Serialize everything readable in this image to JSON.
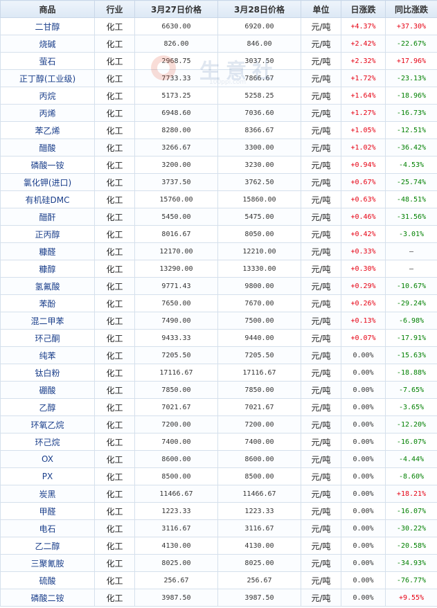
{
  "headers": [
    "商品",
    "行业",
    "3月27日价格",
    "3月28日价格",
    "单位",
    "日涨跌",
    "同比涨跌"
  ],
  "watermark": {
    "text": "生意社",
    "url": "100ppi.com"
  },
  "colors": {
    "up": "#e60012",
    "down": "#008000",
    "name": "#1a3e8a"
  },
  "rows": [
    {
      "name": "二甘醇",
      "industry": "化工",
      "p1": "6630.00",
      "p2": "6920.00",
      "unit": "元/吨",
      "day": "+4.37%",
      "yoy": "+37.30%"
    },
    {
      "name": "烧碱",
      "industry": "化工",
      "p1": "826.00",
      "p2": "846.00",
      "unit": "元/吨",
      "day": "+2.42%",
      "yoy": "-22.67%"
    },
    {
      "name": "萤石",
      "industry": "化工",
      "p1": "2968.75",
      "p2": "3037.50",
      "unit": "元/吨",
      "day": "+2.32%",
      "yoy": "+17.96%"
    },
    {
      "name": "正丁醇(工业级)",
      "industry": "化工",
      "p1": "7733.33",
      "p2": "7866.67",
      "unit": "元/吨",
      "day": "+1.72%",
      "yoy": "-23.13%"
    },
    {
      "name": "丙烷",
      "industry": "化工",
      "p1": "5173.25",
      "p2": "5258.25",
      "unit": "元/吨",
      "day": "+1.64%",
      "yoy": "-18.96%"
    },
    {
      "name": "丙烯",
      "industry": "化工",
      "p1": "6948.60",
      "p2": "7036.60",
      "unit": "元/吨",
      "day": "+1.27%",
      "yoy": "-16.73%"
    },
    {
      "name": "苯乙烯",
      "industry": "化工",
      "p1": "8280.00",
      "p2": "8366.67",
      "unit": "元/吨",
      "day": "+1.05%",
      "yoy": "-12.51%"
    },
    {
      "name": "醋酸",
      "industry": "化工",
      "p1": "3266.67",
      "p2": "3300.00",
      "unit": "元/吨",
      "day": "+1.02%",
      "yoy": "-36.42%"
    },
    {
      "name": "磷酸一铵",
      "industry": "化工",
      "p1": "3200.00",
      "p2": "3230.00",
      "unit": "元/吨",
      "day": "+0.94%",
      "yoy": "-4.53%"
    },
    {
      "name": "氯化钾(进口)",
      "industry": "化工",
      "p1": "3737.50",
      "p2": "3762.50",
      "unit": "元/吨",
      "day": "+0.67%",
      "yoy": "-25.74%"
    },
    {
      "name": "有机硅DMC",
      "industry": "化工",
      "p1": "15760.00",
      "p2": "15860.00",
      "unit": "元/吨",
      "day": "+0.63%",
      "yoy": "-48.51%"
    },
    {
      "name": "醋酐",
      "industry": "化工",
      "p1": "5450.00",
      "p2": "5475.00",
      "unit": "元/吨",
      "day": "+0.46%",
      "yoy": "-31.56%"
    },
    {
      "name": "正丙醇",
      "industry": "化工",
      "p1": "8016.67",
      "p2": "8050.00",
      "unit": "元/吨",
      "day": "+0.42%",
      "yoy": "-3.01%"
    },
    {
      "name": "糠醛",
      "industry": "化工",
      "p1": "12170.00",
      "p2": "12210.00",
      "unit": "元/吨",
      "day": "+0.33%",
      "yoy": "—"
    },
    {
      "name": "糠醇",
      "industry": "化工",
      "p1": "13290.00",
      "p2": "13330.00",
      "unit": "元/吨",
      "day": "+0.30%",
      "yoy": "—"
    },
    {
      "name": "氢氟酸",
      "industry": "化工",
      "p1": "9771.43",
      "p2": "9800.00",
      "unit": "元/吨",
      "day": "+0.29%",
      "yoy": "-10.67%"
    },
    {
      "name": "苯酚",
      "industry": "化工",
      "p1": "7650.00",
      "p2": "7670.00",
      "unit": "元/吨",
      "day": "+0.26%",
      "yoy": "-29.24%"
    },
    {
      "name": "混二甲苯",
      "industry": "化工",
      "p1": "7490.00",
      "p2": "7500.00",
      "unit": "元/吨",
      "day": "+0.13%",
      "yoy": "-6.98%"
    },
    {
      "name": "环己酮",
      "industry": "化工",
      "p1": "9433.33",
      "p2": "9440.00",
      "unit": "元/吨",
      "day": "+0.07%",
      "yoy": "-17.91%"
    },
    {
      "name": "纯苯",
      "industry": "化工",
      "p1": "7205.50",
      "p2": "7205.50",
      "unit": "元/吨",
      "day": "0.00%",
      "yoy": "-15.63%"
    },
    {
      "name": "钛白粉",
      "industry": "化工",
      "p1": "17116.67",
      "p2": "17116.67",
      "unit": "元/吨",
      "day": "0.00%",
      "yoy": "-18.88%"
    },
    {
      "name": "硼酸",
      "industry": "化工",
      "p1": "7850.00",
      "p2": "7850.00",
      "unit": "元/吨",
      "day": "0.00%",
      "yoy": "-7.65%"
    },
    {
      "name": "乙醇",
      "industry": "化工",
      "p1": "7021.67",
      "p2": "7021.67",
      "unit": "元/吨",
      "day": "0.00%",
      "yoy": "-3.65%"
    },
    {
      "name": "环氧乙烷",
      "industry": "化工",
      "p1": "7200.00",
      "p2": "7200.00",
      "unit": "元/吨",
      "day": "0.00%",
      "yoy": "-12.20%"
    },
    {
      "name": "环己烷",
      "industry": "化工",
      "p1": "7400.00",
      "p2": "7400.00",
      "unit": "元/吨",
      "day": "0.00%",
      "yoy": "-16.07%"
    },
    {
      "name": "OX",
      "industry": "化工",
      "p1": "8600.00",
      "p2": "8600.00",
      "unit": "元/吨",
      "day": "0.00%",
      "yoy": "-4.44%"
    },
    {
      "name": "PX",
      "industry": "化工",
      "p1": "8500.00",
      "p2": "8500.00",
      "unit": "元/吨",
      "day": "0.00%",
      "yoy": "-8.60%"
    },
    {
      "name": "炭黑",
      "industry": "化工",
      "p1": "11466.67",
      "p2": "11466.67",
      "unit": "元/吨",
      "day": "0.00%",
      "yoy": "+18.21%"
    },
    {
      "name": "甲醛",
      "industry": "化工",
      "p1": "1223.33",
      "p2": "1223.33",
      "unit": "元/吨",
      "day": "0.00%",
      "yoy": "-16.07%"
    },
    {
      "name": "电石",
      "industry": "化工",
      "p1": "3116.67",
      "p2": "3116.67",
      "unit": "元/吨",
      "day": "0.00%",
      "yoy": "-30.22%"
    },
    {
      "name": "乙二醇",
      "industry": "化工",
      "p1": "4130.00",
      "p2": "4130.00",
      "unit": "元/吨",
      "day": "0.00%",
      "yoy": "-20.58%"
    },
    {
      "name": "三聚氰胺",
      "industry": "化工",
      "p1": "8025.00",
      "p2": "8025.00",
      "unit": "元/吨",
      "day": "0.00%",
      "yoy": "-34.93%"
    },
    {
      "name": "硫酸",
      "industry": "化工",
      "p1": "256.67",
      "p2": "256.67",
      "unit": "元/吨",
      "day": "0.00%",
      "yoy": "-76.77%"
    },
    {
      "name": "磷酸二铵",
      "industry": "化工",
      "p1": "3987.50",
      "p2": "3987.50",
      "unit": "元/吨",
      "day": "0.00%",
      "yoy": "+9.55%"
    }
  ]
}
